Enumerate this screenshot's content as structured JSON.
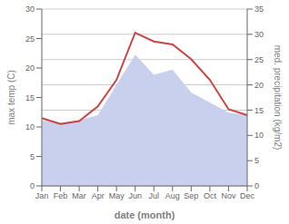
{
  "chart_data": {
    "type": "line",
    "xlabel": "date (month)",
    "ylabel": "max temp (C)",
    "y2label": "med. precipitation (kg/m2)",
    "categories": [
      "Jan",
      "Feb",
      "Mar",
      "Apr",
      "May",
      "Jun",
      "Jul",
      "Aug",
      "Sep",
      "Oct",
      "Nov",
      "Dec"
    ],
    "series": [
      {
        "type": "area",
        "axis": "y2",
        "color": "#c8d0ee",
        "values": [
          13.0,
          12.5,
          13.0,
          14.0,
          20.0,
          26.0,
          22.0,
          23.0,
          18.5,
          16.5,
          14.5,
          14.0
        ]
      },
      {
        "type": "line",
        "color": "#cc4444",
        "values": [
          11.5,
          10.5,
          11.0,
          13.5,
          18.0,
          26.0,
          24.5,
          24.0,
          21.5,
          18.0,
          13.0,
          12.0
        ]
      }
    ],
    "ylim": [
      0,
      30
    ],
    "yticks": [
      0,
      5,
      10,
      15,
      20,
      25,
      30
    ],
    "y2lim": [
      0,
      35
    ],
    "y2ticks": [
      0,
      5,
      10,
      15,
      20,
      25,
      30,
      35
    ],
    "grid": true
  }
}
